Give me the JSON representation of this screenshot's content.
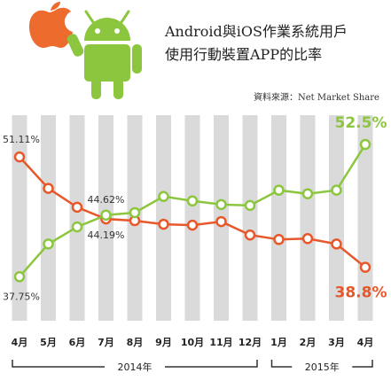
{
  "chart_data": {
    "type": "line",
    "title": [
      "Android與iOS作業系統用戶",
      "使用行動裝置APP的比率"
    ],
    "source": "資料來源：Net Market Share",
    "categories": [
      "4月",
      "5月",
      "6月",
      "7月",
      "8月",
      "9月",
      "10月",
      "11月",
      "12月",
      "1月",
      "2月",
      "3月",
      "4月"
    ],
    "year_groups": [
      {
        "label": "2014年",
        "from": 0,
        "to": 8
      },
      {
        "label": "2015年",
        "from": 9,
        "to": 12
      }
    ],
    "series": [
      {
        "key": "ios",
        "color": "#e8572a",
        "values": [
          51.11,
          47.6,
          45.5,
          44.19,
          44.0,
          43.6,
          43.5,
          43.9,
          42.4,
          41.9,
          42.0,
          41.4,
          38.8
        ],
        "point_labels": [
          {
            "index": 0,
            "text": "51.11%"
          },
          {
            "index": 3,
            "text": "44.19%"
          },
          {
            "index": 12,
            "text": "38.8%"
          }
        ]
      },
      {
        "key": "android",
        "color": "#8cc63f",
        "values": [
          37.75,
          41.4,
          43.3,
          44.62,
          44.9,
          46.7,
          46.2,
          45.8,
          45.7,
          47.4,
          47.0,
          47.4,
          52.5
        ],
        "point_labels": [
          {
            "index": 0,
            "text": "37.75%"
          },
          {
            "index": 3,
            "text": "44.62%"
          },
          {
            "index": 12,
            "text": "52.5%"
          }
        ]
      }
    ],
    "ylim": [
      36,
      53
    ],
    "grid": false,
    "legend": "none"
  },
  "icons": [
    "apple-icon",
    "android-robot-icon"
  ]
}
